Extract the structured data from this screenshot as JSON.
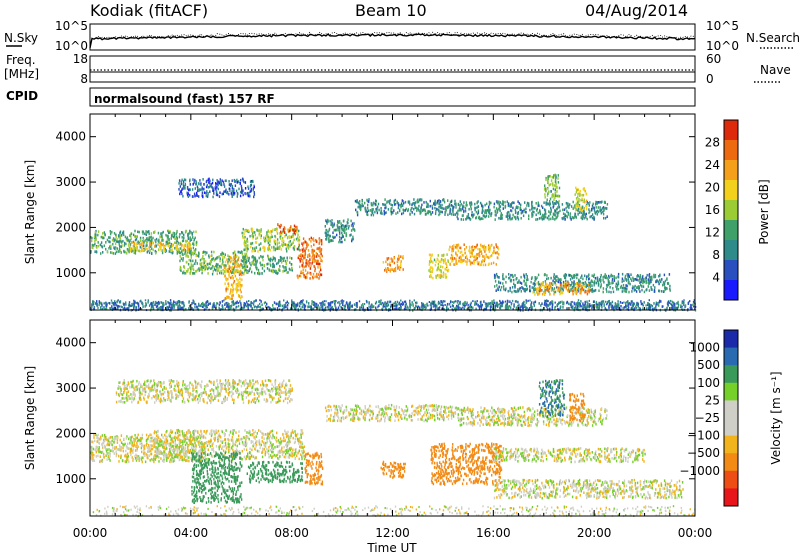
{
  "header": {
    "station": "Kodiak (fitACF)",
    "beam": "Beam 10",
    "date": "04/Aug/2014"
  },
  "top_strips": {
    "nsky_label": "N.Sky",
    "nsearch_label": "N.Search",
    "noise_ticks_left": [
      "10^5",
      "10^0"
    ],
    "noise_ticks_right": [
      "10^5",
      "10^0"
    ],
    "freq_label_line1": "Freq.",
    "freq_label_line2": "[MHz]",
    "freq_ticks": [
      "18",
      "8"
    ],
    "nave_label": "Nave",
    "nave_ticks": [
      "60",
      "0"
    ],
    "cpid_label": "CPID",
    "cpid_text": "normalsound (fast) 157 RF"
  },
  "colors": {
    "power_scale": [
      "#1a1aff",
      "#2a4fbf",
      "#2f8a8a",
      "#3fa06a",
      "#9ccc33",
      "#f2d01c",
      "#f5a01a",
      "#ee6a10",
      "#dd2a0a"
    ],
    "velocity_scale": [
      "#e8161a",
      "#ee4e14",
      "#f28a14",
      "#f2b41c",
      "#cfcfc7",
      "#cfcfc7",
      "#76d02a",
      "#3a9a5a",
      "#2a6ab0",
      "#1a2aa8"
    ]
  },
  "chart_data": [
    {
      "type": "heatmap",
      "name": "power",
      "xlabel": "",
      "ylabel": "Slant Range [km]",
      "x_range": [
        "00:00",
        "00:00"
      ],
      "x_ticks": [
        "00:00",
        "04:00",
        "08:00",
        "12:00",
        "16:00",
        "20:00",
        "00:00"
      ],
      "y_range_km": [
        180,
        4500
      ],
      "y_ticks": [
        "1000",
        "2000",
        "3000",
        "4000"
      ],
      "colorbar_label": "Power [dB]",
      "colorbar_ticks": [
        "4",
        "8",
        "12",
        "16",
        "20",
        "24",
        "28"
      ],
      "colorbar_range": [
        0,
        32
      ],
      "regions": [
        {
          "t0": 0.0,
          "t1": 4.2,
          "r0": 1450,
          "r1": 1950,
          "level": 12
        },
        {
          "t0": 1.5,
          "t1": 4.0,
          "r0": 1500,
          "r1": 1700,
          "level": 20
        },
        {
          "t0": 3.5,
          "t1": 6.2,
          "r0": 1000,
          "r1": 1500,
          "level": 14
        },
        {
          "t0": 5.3,
          "t1": 6.0,
          "r0": 450,
          "r1": 1400,
          "level": 22
        },
        {
          "t0": 6.0,
          "t1": 8.0,
          "r0": 1000,
          "r1": 1400,
          "level": 12
        },
        {
          "t0": 6.0,
          "t1": 8.3,
          "r0": 1500,
          "r1": 2000,
          "level": 16
        },
        {
          "t0": 7.4,
          "t1": 8.2,
          "r0": 1900,
          "r1": 2100,
          "level": 28
        },
        {
          "t0": 8.2,
          "t1": 9.2,
          "r0": 900,
          "r1": 1800,
          "level": 26
        },
        {
          "t0": 9.3,
          "t1": 10.5,
          "r0": 1700,
          "r1": 2200,
          "level": 10
        },
        {
          "t0": 10.5,
          "t1": 14.5,
          "r0": 2300,
          "r1": 2650,
          "level": 10
        },
        {
          "t0": 14.5,
          "t1": 20.5,
          "r0": 2200,
          "r1": 2600,
          "level": 10
        },
        {
          "t0": 11.6,
          "t1": 12.4,
          "r0": 1050,
          "r1": 1400,
          "level": 24
        },
        {
          "t0": 13.4,
          "t1": 14.2,
          "r0": 900,
          "r1": 1450,
          "level": 18
        },
        {
          "t0": 14.2,
          "t1": 16.2,
          "r0": 1200,
          "r1": 1650,
          "level": 22
        },
        {
          "t0": 16.0,
          "t1": 23.0,
          "r0": 600,
          "r1": 1000,
          "level": 10
        },
        {
          "t0": 17.5,
          "t1": 19.8,
          "r0": 550,
          "r1": 800,
          "level": 22
        },
        {
          "t0": 18.0,
          "t1": 18.6,
          "r0": 2600,
          "r1": 3200,
          "level": 14
        },
        {
          "t0": 19.2,
          "t1": 19.7,
          "r0": 2400,
          "r1": 2900,
          "level": 18
        },
        {
          "t0": 3.5,
          "t1": 6.5,
          "r0": 2700,
          "r1": 3100,
          "level": 6
        },
        {
          "t0": 0.0,
          "t1": 24.0,
          "r0": 200,
          "r1": 400,
          "level": 8
        }
      ]
    },
    {
      "type": "heatmap",
      "name": "velocity",
      "xlabel": "Time UT",
      "ylabel": "Slant Range [km]",
      "x_range": [
        "00:00",
        "00:00"
      ],
      "x_ticks": [
        "00:00",
        "04:00",
        "08:00",
        "12:00",
        "16:00",
        "20:00",
        "00:00"
      ],
      "y_range_km": [
        180,
        4500
      ],
      "y_ticks": [
        "1000",
        "2000",
        "3000",
        "4000"
      ],
      "colorbar_label": "Velocity [m s⁻¹]",
      "colorbar_ticks": [
        "1000",
        "500",
        "100",
        "25",
        "−25",
        "−100",
        "−500",
        "−1000"
      ],
      "regions": [
        {
          "t0": 0.0,
          "t1": 4.5,
          "r0": 1400,
          "r1": 2000,
          "vel": 0
        },
        {
          "t0": 2.5,
          "t1": 8.5,
          "r0": 1450,
          "r1": 2100,
          "vel": 0
        },
        {
          "t0": 4.0,
          "t1": 6.0,
          "r0": 500,
          "r1": 1600,
          "vel": 300
        },
        {
          "t0": 6.2,
          "t1": 8.4,
          "r0": 950,
          "r1": 1400,
          "vel": 300
        },
        {
          "t0": 8.5,
          "t1": 9.2,
          "r0": 900,
          "r1": 1600,
          "vel": -200
        },
        {
          "t0": 9.3,
          "t1": 14.5,
          "r0": 2300,
          "r1": 2650,
          "vel": 0
        },
        {
          "t0": 14.5,
          "t1": 20.5,
          "r0": 2200,
          "r1": 2600,
          "vel": 0
        },
        {
          "t0": 11.5,
          "t1": 12.5,
          "r0": 1050,
          "r1": 1400,
          "vel": -300
        },
        {
          "t0": 13.5,
          "t1": 16.3,
          "r0": 900,
          "r1": 1800,
          "vel": -300
        },
        {
          "t0": 16.0,
          "t1": 23.5,
          "r0": 600,
          "r1": 1000,
          "vel": 0
        },
        {
          "t0": 17.8,
          "t1": 18.8,
          "r0": 2400,
          "r1": 3200,
          "vel": 500
        },
        {
          "t0": 19.0,
          "t1": 19.6,
          "r0": 2300,
          "r1": 2900,
          "vel": -300
        },
        {
          "t0": 1.0,
          "t1": 8.0,
          "r0": 2700,
          "r1": 3200,
          "vel": 0
        },
        {
          "t0": 16.0,
          "t1": 22.0,
          "r0": 1400,
          "r1": 1700,
          "vel": 0
        }
      ]
    }
  ]
}
